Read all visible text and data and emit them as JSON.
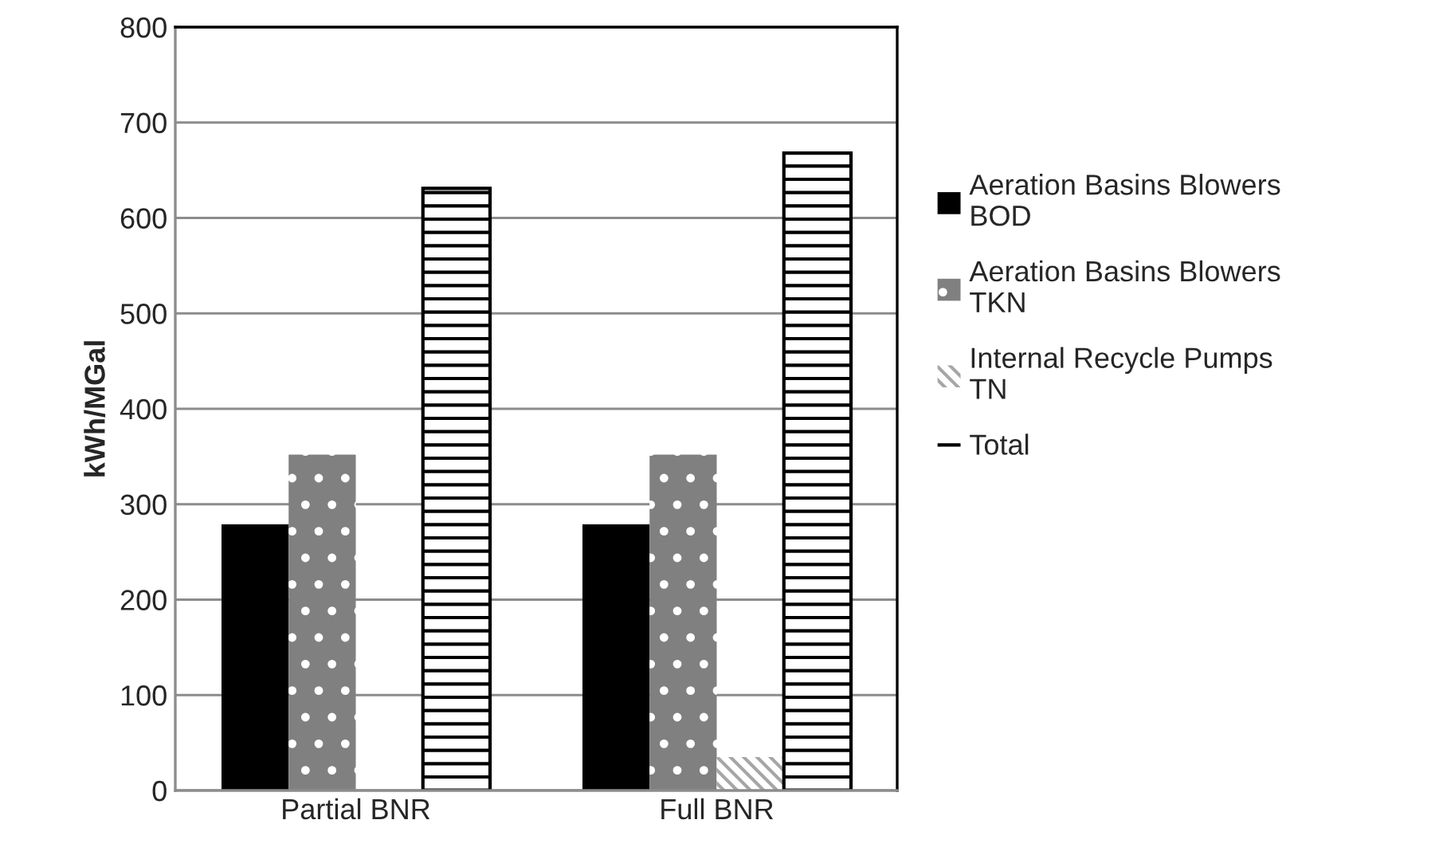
{
  "chart_data": {
    "type": "bar",
    "ylabel": "kWh/MGal",
    "categories": [
      "Partial BNR",
      "Full BNR"
    ],
    "series": [
      {
        "name": "Aeration Basins Blowers BOD",
        "color": "#000000",
        "values": [
          279,
          279
        ]
      },
      {
        "name": "Aeration Basins Blowers TKN",
        "color": "#808080",
        "values": [
          352,
          352
        ]
      },
      {
        "name": "Internal Recycle Pumps TN",
        "color": "#a6a6a6",
        "values": [
          null,
          35
        ]
      },
      {
        "name": "Total",
        "color": "#ffffff",
        "values": [
          631,
          668
        ]
      }
    ],
    "ylim": [
      0,
      800
    ],
    "yticks": [
      0,
      100,
      200,
      300,
      400,
      500,
      600,
      700,
      800
    ],
    "grid": "y",
    "legend": "right"
  }
}
